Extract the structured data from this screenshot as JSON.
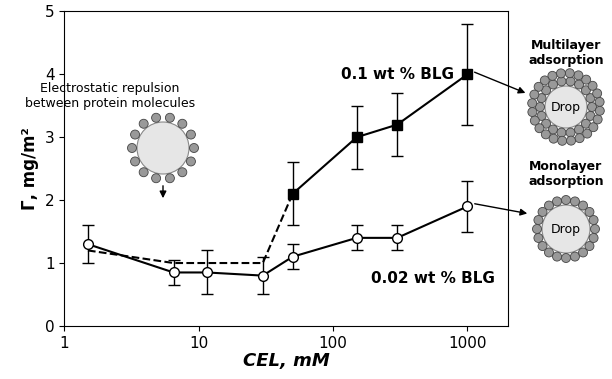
{
  "chart_data": {
    "type": "line",
    "log": "x",
    "x_label": "CEL, mM",
    "y_label": "Γ, mg/m²",
    "xlim": [
      1,
      2000
    ],
    "xticks": [
      1,
      10,
      100,
      1000
    ],
    "ylim": [
      0,
      5
    ],
    "yticks": [
      0,
      1,
      2,
      3,
      4,
      5
    ],
    "grid": false,
    "series": [
      {
        "name": "0.1 wt % BLG",
        "color": "#000000",
        "marker": "square",
        "line_style": "solid",
        "x": [
          50,
          150,
          300,
          1000
        ],
        "values": [
          2.1,
          3.0,
          3.2,
          4.0
        ],
        "errors": [
          0.5,
          0.5,
          0.5,
          0.8
        ]
      },
      {
        "color": "#000000",
        "marker": "none",
        "line_style": "dashed",
        "x": [
          1.5,
          6.5,
          30,
          50
        ],
        "values": [
          1.2,
          1.0,
          1.0,
          2.1
        ]
      },
      {
        "name": "0.02 wt % BLG",
        "color": "#000000",
        "marker": "circle",
        "line_style": "solid",
        "x": [
          1.5,
          6.5,
          11.5,
          30,
          50,
          150,
          300,
          1000
        ],
        "values": [
          1.3,
          0.85,
          0.85,
          0.8,
          1.1,
          1.4,
          1.4,
          1.9
        ],
        "errors": [
          0.3,
          0.2,
          0.35,
          0.3,
          0.2,
          0.2,
          0.2,
          0.4
        ]
      }
    ],
    "annotations": {
      "repulsion": "Electrostatic repulsion\nbetween protein molecules",
      "multilayer": "Multilayer\nadsorption",
      "monolayer": "Monolayer\nadsorption",
      "drop": "Drop"
    }
  }
}
